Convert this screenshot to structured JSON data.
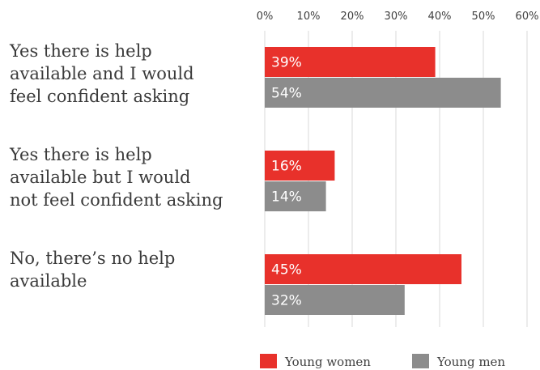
{
  "chart_data": {
    "type": "bar",
    "orientation": "horizontal",
    "categories": [
      [
        "Yes there is help",
        "available and I would",
        "feel confident asking"
      ],
      [
        "Yes there is help",
        "available but I would",
        "not feel confident asking"
      ],
      [
        "No, there’s no help",
        "available"
      ]
    ],
    "series": [
      {
        "name": "Young women",
        "color": "#e8312b",
        "values": [
          39,
          16,
          45
        ],
        "labels": [
          "39%",
          "16%",
          "45%"
        ]
      },
      {
        "name": "Young men",
        "color": "#8c8c8c",
        "values": [
          54,
          14,
          32
        ],
        "labels": [
          "54%",
          "14%",
          "32%"
        ]
      }
    ],
    "xlim": [
      0,
      60
    ],
    "xticks": [
      0,
      10,
      20,
      30,
      40,
      50,
      60
    ],
    "xtick_labels": [
      "0%",
      "10%",
      "20%",
      "30%",
      "40%",
      "50%",
      "60%"
    ],
    "grid": true,
    "legend_position": "bottom-right"
  }
}
